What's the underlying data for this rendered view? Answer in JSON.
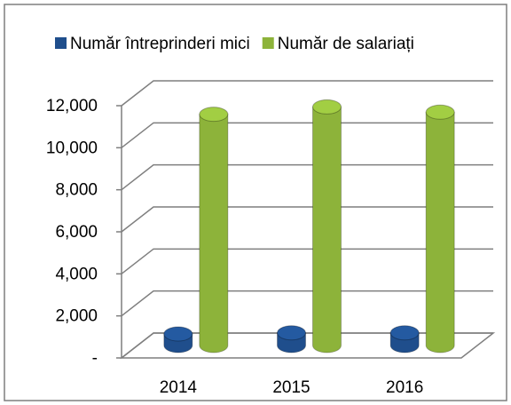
{
  "chart_data": {
    "type": "bar3d",
    "categories": [
      "2014",
      "2015",
      "2016"
    ],
    "series": [
      {
        "name": "Număr întreprinderi mici",
        "color": "#1f4e8c",
        "values": [
          550,
          600,
          600
        ]
      },
      {
        "name": "Număr de salariați",
        "color": "#8db33a",
        "values": [
          11000,
          11350,
          11100
        ]
      }
    ],
    "ylim": [
      0,
      12000
    ],
    "yticks": [
      {
        "value": 0,
        "label": "-"
      },
      {
        "value": 2000,
        "label": "2,000"
      },
      {
        "value": 4000,
        "label": "4,000"
      },
      {
        "value": 6000,
        "label": "6,000"
      },
      {
        "value": 8000,
        "label": "8,000"
      },
      {
        "value": 10000,
        "label": "10,000"
      },
      {
        "value": 12000,
        "label": "12,000"
      }
    ],
    "grid": true,
    "legend": "top"
  }
}
